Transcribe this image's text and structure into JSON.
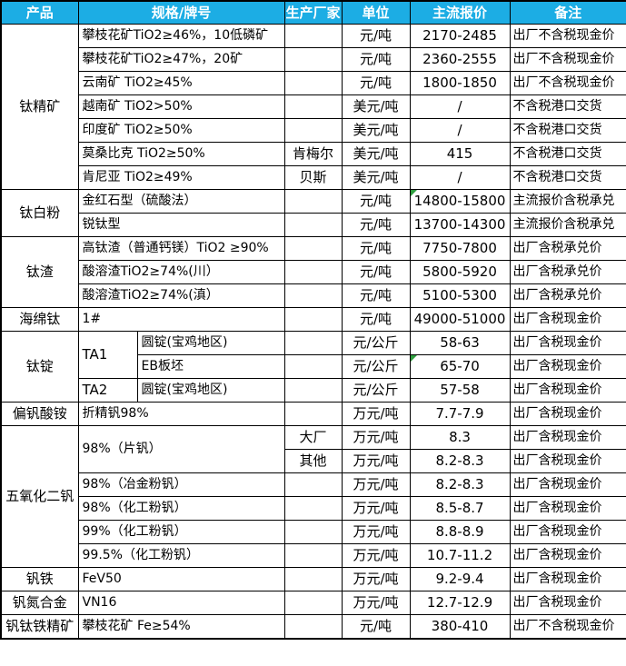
{
  "style_tokens": {
    "header_bg": "#1CADE4",
    "header_text": "#FFFFFF",
    "grid_color": "#000000",
    "marker_green": "#2E9E3F"
  },
  "chart_data": {
    "type": "table",
    "columns": [
      {
        "key": "product",
        "label": "产品",
        "colspan": 1
      },
      {
        "key": "spec",
        "label": "规格/牌号",
        "colspan": 2
      },
      {
        "key": "producer",
        "label": "生产厂家",
        "colspan": 1
      },
      {
        "key": "unit",
        "label": "单位",
        "colspan": 1
      },
      {
        "key": "price",
        "label": "主流报价",
        "colspan": 1
      },
      {
        "key": "note",
        "label": "备注",
        "colspan": 1
      }
    ],
    "rows": [
      {
        "cells": [
          {
            "col": "product",
            "text": "钛精矿",
            "rowspan": 7
          },
          {
            "col": "spec",
            "text": "攀枝花矿TiO2≥46%，10低磷矿",
            "colspan": 2
          },
          {
            "col": "producer",
            "text": ""
          },
          {
            "col": "unit",
            "text": "元/吨"
          },
          {
            "col": "price",
            "text": "2170-2485"
          },
          {
            "col": "note",
            "text": "出厂不含税现金价"
          }
        ]
      },
      {
        "cells": [
          {
            "col": "spec",
            "text": "攀枝花矿TiO2≥47%，20矿",
            "colspan": 2
          },
          {
            "col": "producer",
            "text": ""
          },
          {
            "col": "unit",
            "text": "元/吨"
          },
          {
            "col": "price",
            "text": "2360-2555"
          },
          {
            "col": "note",
            "text": "出厂不含税现金价"
          }
        ]
      },
      {
        "cells": [
          {
            "col": "spec",
            "text": "云南矿 TiO2≥45%",
            "colspan": 2
          },
          {
            "col": "producer",
            "text": ""
          },
          {
            "col": "unit",
            "text": "元/吨"
          },
          {
            "col": "price",
            "text": "1800-1850"
          },
          {
            "col": "note",
            "text": "出厂不含税现金价"
          }
        ]
      },
      {
        "cells": [
          {
            "col": "spec",
            "text": "越南矿 TiO2>50%",
            "colspan": 2
          },
          {
            "col": "producer",
            "text": ""
          },
          {
            "col": "unit",
            "text": "美元/吨"
          },
          {
            "col": "price",
            "text": "/"
          },
          {
            "col": "note",
            "text": "不含税港口交货"
          }
        ]
      },
      {
        "cells": [
          {
            "col": "spec",
            "text": "印度矿 TiO2≥50%",
            "colspan": 2
          },
          {
            "col": "producer",
            "text": ""
          },
          {
            "col": "unit",
            "text": "美元/吨"
          },
          {
            "col": "price",
            "text": "/"
          },
          {
            "col": "note",
            "text": "不含税港口交货"
          }
        ]
      },
      {
        "cells": [
          {
            "col": "spec",
            "text": "莫桑比克 TiO2≥50%",
            "colspan": 2
          },
          {
            "col": "producer",
            "text": "肯梅尔"
          },
          {
            "col": "unit",
            "text": "美元/吨"
          },
          {
            "col": "price",
            "text": "415"
          },
          {
            "col": "note",
            "text": "不含税港口交货"
          }
        ]
      },
      {
        "cells": [
          {
            "col": "spec",
            "text": "肯尼亚 TiO2≥49%",
            "colspan": 2
          },
          {
            "col": "producer",
            "text": "贝斯"
          },
          {
            "col": "unit",
            "text": "美元/吨"
          },
          {
            "col": "price",
            "text": "/"
          },
          {
            "col": "note",
            "text": "不含税港口交货"
          }
        ]
      },
      {
        "cells": [
          {
            "col": "product",
            "text": "钛白粉",
            "rowspan": 2
          },
          {
            "col": "spec",
            "text": "金红石型（硫酸法）",
            "colspan": 2
          },
          {
            "col": "producer",
            "text": ""
          },
          {
            "col": "unit",
            "text": "元/吨"
          },
          {
            "col": "price",
            "text": "14800-15800",
            "marker": "green-triangle"
          },
          {
            "col": "note",
            "text": "主流报价含税承兑"
          }
        ]
      },
      {
        "cells": [
          {
            "col": "spec",
            "text": "锐钛型",
            "colspan": 2
          },
          {
            "col": "producer",
            "text": ""
          },
          {
            "col": "unit",
            "text": "元/吨"
          },
          {
            "col": "price",
            "text": "13700-14300"
          },
          {
            "col": "note",
            "text": "主流报价含税承兑"
          }
        ]
      },
      {
        "cells": [
          {
            "col": "product",
            "text": "钛渣",
            "rowspan": 3
          },
          {
            "col": "spec",
            "text": "高钛渣（普通钙镁）TiO2 ≥90%",
            "colspan": 2
          },
          {
            "col": "producer",
            "text": ""
          },
          {
            "col": "unit",
            "text": "元/吨"
          },
          {
            "col": "price",
            "text": "7750-7800"
          },
          {
            "col": "note",
            "text": "出厂含税承兑价"
          }
        ]
      },
      {
        "cells": [
          {
            "col": "spec",
            "text": "酸溶渣TiO2≥74%(川）",
            "colspan": 2
          },
          {
            "col": "producer",
            "text": ""
          },
          {
            "col": "unit",
            "text": "元/吨"
          },
          {
            "col": "price",
            "text": "5800-5920"
          },
          {
            "col": "note",
            "text": "出厂含税承兑价"
          }
        ]
      },
      {
        "cells": [
          {
            "col": "spec",
            "text": "酸溶渣TiO2≥74%(滇）",
            "colspan": 2
          },
          {
            "col": "producer",
            "text": ""
          },
          {
            "col": "unit",
            "text": "元/吨"
          },
          {
            "col": "price",
            "text": "5100-5300"
          },
          {
            "col": "note",
            "text": "出厂含税承兑价"
          }
        ]
      },
      {
        "cells": [
          {
            "col": "product",
            "text": "海绵钛"
          },
          {
            "col": "spec",
            "text": "1#",
            "colspan": 2
          },
          {
            "col": "producer",
            "text": ""
          },
          {
            "col": "unit",
            "text": "元/吨"
          },
          {
            "col": "price",
            "text": "49000-51000"
          },
          {
            "col": "note",
            "text": "出厂含税现金价"
          }
        ]
      },
      {
        "cells": [
          {
            "col": "product",
            "text": "钛锭",
            "rowspan": 3
          },
          {
            "col": "grade",
            "text": "TA1",
            "rowspan": 2
          },
          {
            "col": "spec",
            "text": "圆锭(宝鸡地区)"
          },
          {
            "col": "producer",
            "text": ""
          },
          {
            "col": "unit",
            "text": "元/公斤"
          },
          {
            "col": "price",
            "text": "58-63"
          },
          {
            "col": "note",
            "text": "出厂含税现金价"
          }
        ]
      },
      {
        "cells": [
          {
            "col": "spec",
            "text": "EB板坯"
          },
          {
            "col": "producer",
            "text": ""
          },
          {
            "col": "unit",
            "text": "元/公斤"
          },
          {
            "col": "price",
            "text": "65-70",
            "marker": "green-triangle"
          },
          {
            "col": "note",
            "text": "出厂含税现金价"
          }
        ]
      },
      {
        "cells": [
          {
            "col": "grade",
            "text": "TA2"
          },
          {
            "col": "spec",
            "text": "圆锭(宝鸡地区)"
          },
          {
            "col": "producer",
            "text": ""
          },
          {
            "col": "unit",
            "text": "元/公斤"
          },
          {
            "col": "price",
            "text": "57-58"
          },
          {
            "col": "note",
            "text": "出厂含税现金价"
          }
        ]
      },
      {
        "cells": [
          {
            "col": "product",
            "text": "偏钒酸铵"
          },
          {
            "col": "spec",
            "text": "折精钒98%",
            "colspan": 2
          },
          {
            "col": "producer",
            "text": ""
          },
          {
            "col": "unit",
            "text": "万元/吨"
          },
          {
            "col": "price",
            "text": "7.7-7.9"
          },
          {
            "col": "note",
            "text": "出厂含税现金价"
          }
        ]
      },
      {
        "cells": [
          {
            "col": "product",
            "text": "五氧化二钒",
            "rowspan": 6
          },
          {
            "col": "spec",
            "text": "98%（片钒）",
            "colspan": 2,
            "rowspan": 2
          },
          {
            "col": "producer",
            "text": "大厂"
          },
          {
            "col": "unit",
            "text": "万元/吨"
          },
          {
            "col": "price",
            "text": "8.3"
          },
          {
            "col": "note",
            "text": "出厂含税现金价"
          }
        ]
      },
      {
        "cells": [
          {
            "col": "producer",
            "text": "其他"
          },
          {
            "col": "unit",
            "text": "万元/吨"
          },
          {
            "col": "price",
            "text": "8.2-8.3"
          },
          {
            "col": "note",
            "text": "出厂含税现金价"
          }
        ]
      },
      {
        "cells": [
          {
            "col": "spec",
            "text": "98%（冶金粉钒）",
            "colspan": 2
          },
          {
            "col": "producer",
            "text": ""
          },
          {
            "col": "unit",
            "text": "万元/吨"
          },
          {
            "col": "price",
            "text": "8.2-8.3"
          },
          {
            "col": "note",
            "text": "出厂含税现金价"
          }
        ]
      },
      {
        "cells": [
          {
            "col": "spec",
            "text": "98%（化工粉钒）",
            "colspan": 2
          },
          {
            "col": "producer",
            "text": ""
          },
          {
            "col": "unit",
            "text": "万元/吨"
          },
          {
            "col": "price",
            "text": "8.5-8.7"
          },
          {
            "col": "note",
            "text": "出厂含税现金价"
          }
        ]
      },
      {
        "cells": [
          {
            "col": "spec",
            "text": "99%（化工粉钒）",
            "colspan": 2
          },
          {
            "col": "producer",
            "text": ""
          },
          {
            "col": "unit",
            "text": "万元/吨"
          },
          {
            "col": "price",
            "text": "8.8-8.9"
          },
          {
            "col": "note",
            "text": "出厂含税现金价"
          }
        ]
      },
      {
        "cells": [
          {
            "col": "spec",
            "text": "99.5%（化工粉钒）",
            "colspan": 2
          },
          {
            "col": "producer",
            "text": ""
          },
          {
            "col": "unit",
            "text": "万元/吨"
          },
          {
            "col": "price",
            "text": "10.7-11.2"
          },
          {
            "col": "note",
            "text": "出厂含税现金价"
          }
        ]
      },
      {
        "cells": [
          {
            "col": "product",
            "text": "钒铁"
          },
          {
            "col": "spec",
            "text": "FeV50",
            "colspan": 2
          },
          {
            "col": "producer",
            "text": ""
          },
          {
            "col": "unit",
            "text": "万元/吨"
          },
          {
            "col": "price",
            "text": "9.2-9.4"
          },
          {
            "col": "note",
            "text": "出厂含税现金价"
          }
        ]
      },
      {
        "cells": [
          {
            "col": "product",
            "text": "钒氮合金"
          },
          {
            "col": "spec",
            "text": "VN16",
            "colspan": 2
          },
          {
            "col": "producer",
            "text": ""
          },
          {
            "col": "unit",
            "text": "万元/吨"
          },
          {
            "col": "price",
            "text": "12.7-12.9"
          },
          {
            "col": "note",
            "text": "出厂含税现金价"
          }
        ]
      },
      {
        "cells": [
          {
            "col": "product",
            "text": "钒钛铁精矿"
          },
          {
            "col": "spec",
            "text": "攀枝花矿 Fe≥54%",
            "colspan": 2
          },
          {
            "col": "producer",
            "text": ""
          },
          {
            "col": "unit",
            "text": "元/吨"
          },
          {
            "col": "price",
            "text": "380-410"
          },
          {
            "col": "note",
            "text": "出厂不含税现金价"
          }
        ]
      }
    ]
  }
}
